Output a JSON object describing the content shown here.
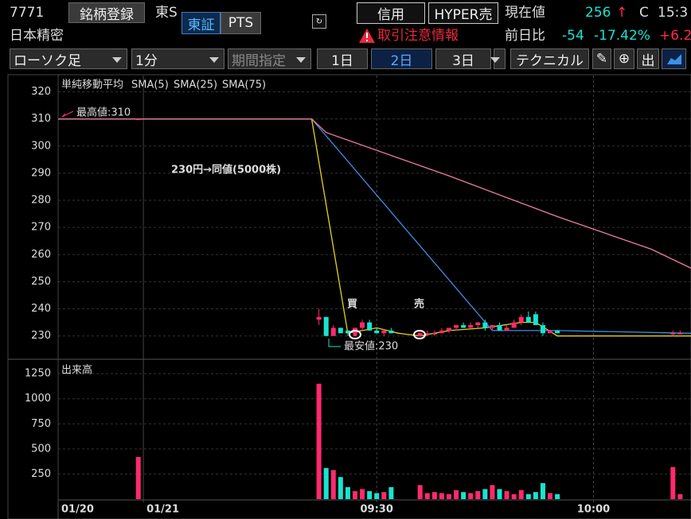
{
  "header": {
    "code": "7771",
    "register": "銘柄登録",
    "market": "東S",
    "tabs": [
      "東証",
      "PTS"
    ],
    "credit": "信用",
    "hyper": "HYPER売",
    "price_label": "現在値",
    "price": "256",
    "arrow": "↑",
    "flag": "C",
    "time": "15:3",
    "name": "日本精密",
    "warning": "取引注意情報",
    "change_label": "前日比",
    "change": "-54",
    "change_pct": "-17.42%",
    "other": "+6.2"
  },
  "toolbar": {
    "dropdowns": [
      "ローソク足",
      "1分",
      "期間指定"
    ],
    "ranges": [
      "1日",
      "2日",
      "3日"
    ],
    "technical": "テクニカル",
    "icon_text": "出"
  },
  "chart_data": [
    {
      "type": "candlestick",
      "legend_title": "単純移動平均",
      "up_color": "#ff2a6d",
      "down_color": "#19e3d0",
      "x": [
        -3,
        22,
        23,
        24,
        25,
        26,
        27,
        28,
        29,
        30,
        31,
        32,
        36,
        37,
        38,
        39,
        40,
        41,
        42,
        43,
        44,
        45,
        46,
        47,
        48,
        49,
        50,
        51,
        52,
        53,
        54,
        55,
        71,
        72
      ],
      "open": [
        310,
        236,
        237,
        230,
        233,
        232,
        231,
        233,
        235,
        232,
        231,
        232,
        230,
        231,
        231,
        231,
        232,
        233,
        234,
        233,
        234,
        235,
        233,
        234,
        232,
        233,
        235,
        237,
        238,
        234,
        231,
        232,
        231,
        231
      ],
      "high": [
        310,
        240,
        237,
        234,
        233,
        232,
        233,
        236,
        236,
        233,
        232,
        233,
        231,
        232,
        232,
        233,
        233,
        234,
        235,
        235,
        235,
        236,
        234,
        235,
        234,
        236,
        238,
        239,
        239,
        235,
        232,
        232,
        232,
        232
      ],
      "low": [
        310,
        234,
        230,
        230,
        231,
        230,
        230,
        232,
        232,
        231,
        230,
        231,
        230,
        230,
        230,
        231,
        231,
        232,
        233,
        233,
        233,
        232,
        232,
        232,
        232,
        233,
        234,
        235,
        234,
        230,
        231,
        231,
        230,
        231
      ],
      "close": [
        310,
        237,
        230,
        233,
        231,
        231,
        233,
        235,
        232,
        231,
        232,
        231,
        231,
        231,
        231,
        232,
        233,
        234,
        233,
        234,
        235,
        233,
        234,
        232,
        233,
        235,
        237,
        235,
        234,
        231,
        232,
        231,
        231,
        231
      ],
      "series": [
        {
          "name": "SMA(5)",
          "color": "#e6d21a",
          "x": [
            -14.1,
            21,
            26,
            28,
            30,
            33,
            36,
            40,
            45,
            50,
            52,
            55,
            73.5
          ],
          "values": [
            310,
            310,
            231,
            232,
            233,
            231,
            230,
            232,
            233,
            235,
            235,
            230,
            230
          ]
        },
        {
          "name": "SMA(25)",
          "color": "#3d8fe6",
          "x": [
            -14.1,
            21,
            46,
            55,
            73.5
          ],
          "values": [
            310,
            310,
            232,
            232,
            231
          ]
        },
        {
          "name": "SMA(75)",
          "color": "#f07ca0",
          "x": [
            -14.1,
            21,
            23,
            40,
            55,
            68,
            73.5
          ],
          "values": [
            310,
            310,
            305,
            289,
            274,
            262,
            255
          ]
        }
      ],
      "xlim": [
        -14.1,
        73.5
      ],
      "ylim": [
        222,
        326
      ],
      "yticks": [
        230,
        240,
        250,
        260,
        270,
        280,
        290,
        300,
        310,
        320
      ],
      "grid": true,
      "annotations": [
        "最高値:310",
        "最安値:230",
        "230円→同値(5000株)",
        "買",
        "売"
      ]
    },
    {
      "type": "bar",
      "title": "出来高",
      "x": [
        -3,
        22,
        23,
        24,
        25,
        26,
        27,
        28,
        29,
        30,
        31,
        32,
        36,
        37,
        38,
        39,
        40,
        41,
        42,
        43,
        44,
        45,
        46,
        47,
        48,
        49,
        50,
        51,
        52,
        53,
        54,
        55,
        71,
        72
      ],
      "values": [
        420,
        1150,
        310,
        290,
        220,
        120,
        80,
        100,
        80,
        60,
        70,
        120,
        140,
        60,
        70,
        60,
        50,
        90,
        70,
        60,
        80,
        100,
        140,
        100,
        80,
        50,
        90,
        50,
        70,
        160,
        60,
        50,
        320,
        50
      ],
      "xlim": [
        -14.1,
        73.5
      ],
      "ylim": [
        0,
        1370
      ],
      "yticks": [
        250,
        500,
        750,
        1000,
        1250
      ],
      "xticks": [
        {
          "value": -14.1,
          "label": "01/20"
        },
        {
          "value": -2.3,
          "label": "01/21"
        },
        {
          "value": 30,
          "label": "09:30"
        },
        {
          "value": 60,
          "label": "10:00"
        }
      ],
      "grid": true
    }
  ]
}
